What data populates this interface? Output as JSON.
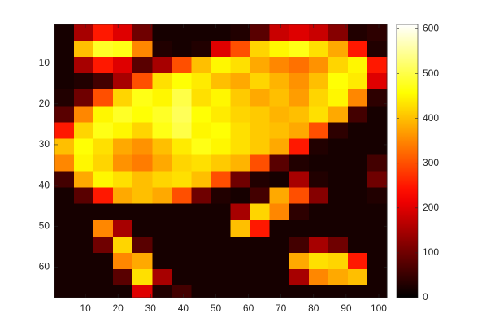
{
  "chart_data": {
    "type": "heatmap",
    "colormap": "hot",
    "clim": [
      0,
      610
    ],
    "y_reversed": true,
    "xbins": [
      0.5,
      6.5,
      12.5,
      18.5,
      24.5,
      30.5,
      36.5,
      42.5,
      48.5,
      54.5,
      60.5,
      66.5,
      72.5,
      78.5,
      84.5,
      90.5,
      96.5,
      102.5
    ],
    "ybins": [
      0.5,
      4.5,
      8.5,
      12.5,
      16.5,
      20.5,
      24.5,
      28.5,
      32.5,
      36.5,
      40.5,
      44.5,
      48.5,
      52.5,
      56.5,
      60.5,
      64.5,
      67.5
    ],
    "z": [
      [
        20,
        150,
        250,
        200,
        100,
        20,
        20,
        20,
        20,
        30,
        80,
        180,
        200,
        180,
        120,
        30,
        40
      ],
      [
        20,
        400,
        480,
        470,
        350,
        30,
        20,
        30,
        200,
        300,
        420,
        450,
        470,
        430,
        380,
        250,
        30
      ],
      [
        20,
        150,
        250,
        200,
        80,
        150,
        300,
        400,
        450,
        430,
        380,
        350,
        330,
        360,
        420,
        450,
        250
      ],
      [
        20,
        30,
        60,
        150,
        300,
        430,
        460,
        440,
        400,
        380,
        420,
        390,
        360,
        400,
        460,
        440,
        200
      ],
      [
        30,
        100,
        300,
        420,
        470,
        450,
        500,
        430,
        450,
        410,
        380,
        400,
        370,
        420,
        450,
        350,
        40
      ],
      [
        80,
        350,
        450,
        480,
        460,
        480,
        510,
        460,
        440,
        420,
        410,
        390,
        400,
        430,
        380,
        60,
        20
      ],
      [
        250,
        420,
        470,
        450,
        420,
        470,
        500,
        450,
        460,
        430,
        410,
        400,
        380,
        300,
        40,
        20,
        20
      ],
      [
        400,
        460,
        430,
        380,
        360,
        400,
        440,
        470,
        450,
        430,
        410,
        380,
        250,
        30,
        20,
        20,
        20
      ],
      [
        350,
        450,
        420,
        360,
        340,
        380,
        420,
        430,
        410,
        390,
        300,
        80,
        30,
        20,
        20,
        20,
        60
      ],
      [
        60,
        380,
        450,
        430,
        400,
        420,
        430,
        400,
        300,
        100,
        30,
        20,
        150,
        30,
        20,
        20,
        100
      ],
      [
        20,
        80,
        250,
        380,
        400,
        380,
        300,
        100,
        30,
        20,
        60,
        380,
        300,
        120,
        20,
        20,
        30
      ],
      [
        20,
        20,
        20,
        20,
        20,
        20,
        20,
        20,
        20,
        150,
        420,
        350,
        40,
        20,
        20,
        20,
        20
      ],
      [
        20,
        20,
        350,
        150,
        20,
        20,
        20,
        20,
        20,
        400,
        250,
        20,
        20,
        20,
        20,
        20,
        20
      ],
      [
        20,
        20,
        100,
        420,
        80,
        20,
        20,
        20,
        20,
        20,
        20,
        20,
        60,
        150,
        100,
        20,
        20
      ],
      [
        20,
        20,
        20,
        350,
        380,
        20,
        20,
        20,
        20,
        20,
        20,
        20,
        380,
        430,
        420,
        250,
        20
      ],
      [
        20,
        20,
        20,
        80,
        430,
        150,
        20,
        20,
        20,
        20,
        20,
        20,
        150,
        350,
        380,
        400,
        20
      ],
      [
        20,
        20,
        20,
        20,
        200,
        30,
        60,
        20,
        20,
        20,
        20,
        20,
        20,
        20,
        20,
        20,
        20
      ]
    ],
    "xlim": [
      0.5,
      102.5
    ],
    "xticks": [
      10,
      20,
      30,
      40,
      50,
      60,
      70,
      80,
      90,
      100
    ],
    "ylim": [
      0.5,
      67.5
    ],
    "yticks": [
      10,
      20,
      30,
      40,
      50,
      60
    ],
    "cticks": [
      0,
      100,
      200,
      300,
      400,
      500,
      600
    ]
  }
}
